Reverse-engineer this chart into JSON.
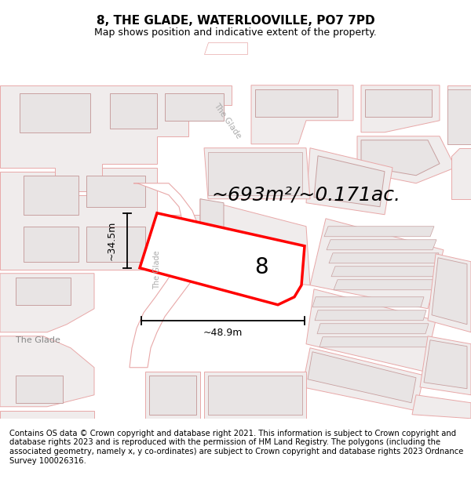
{
  "title": "8, THE GLADE, WATERLOOVILLE, PO7 7PD",
  "subtitle": "Map shows position and indicative extent of the property.",
  "footer": "Contains OS data © Crown copyright and database right 2021. This information is subject to Crown copyright and database rights 2023 and is reproduced with the permission of HM Land Registry. The polygons (including the associated geometry, namely x, y co-ordinates) are subject to Crown copyright and database rights 2023 Ordnance Survey 100026316.",
  "area_text": "~693m²/~0.171ac.",
  "width_label": "~48.9m",
  "height_label": "~34.5m",
  "road_label_diag": "The Glade",
  "road_label_vert": "The Glade",
  "road_label_horiz": "The Glade",
  "plot_number": "8",
  "bg_color": "#f5f0f0",
  "outline_color": "#ff0000",
  "plot_fill": "#ffffff",
  "building_fill": "#e8e4e4",
  "building_stroke": "#c8a0a0",
  "parcel_fill": "#f0ecec",
  "parcel_stroke": "#e8a8a8",
  "road_fill": "#ffffff",
  "dim_color": "#000000",
  "title_fontsize": 11,
  "subtitle_fontsize": 9,
  "footer_fontsize": 7.2,
  "area_fontsize": 18,
  "label_fontsize": 8,
  "plot_label_fontsize": 20,
  "dim_label_fontsize": 9
}
